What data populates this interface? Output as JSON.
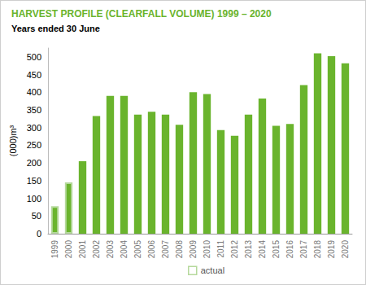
{
  "chart_data": {
    "type": "bar",
    "title": "HARVEST PROFILE (CLEARFALL VOLUME) 1999 – 2020",
    "subtitle": "Years ended 30 June",
    "y_label": "(000)m³",
    "categories": [
      "1999",
      "2000",
      "2001",
      "2002",
      "2003",
      "2004",
      "2005",
      "2006",
      "2007",
      "2008",
      "2009",
      "2010",
      "2011",
      "2012",
      "2013",
      "2014",
      "2015",
      "2016",
      "2017",
      "2018",
      "2019",
      "2020"
    ],
    "series": [
      {
        "name": "actual",
        "color": "#6ab42d",
        "values": [
          78,
          145,
          null,
          null,
          null,
          null,
          null,
          null,
          null,
          null,
          null,
          null,
          null,
          null,
          null,
          null,
          null,
          null,
          null,
          null,
          null,
          null
        ]
      },
      {
        "color": "#6ab42d",
        "values": [
          null,
          null,
          205,
          333,
          390,
          390,
          337,
          345,
          337,
          308,
          400,
          395,
          293,
          277,
          337,
          382,
          305,
          310,
          420,
          510,
          502,
          482
        ]
      }
    ],
    "stacked": true,
    "ylim": [
      0,
      525
    ],
    "yticks": [
      0,
      50,
      100,
      150,
      200,
      250,
      300,
      350,
      400,
      450,
      500
    ],
    "grid": false
  }
}
